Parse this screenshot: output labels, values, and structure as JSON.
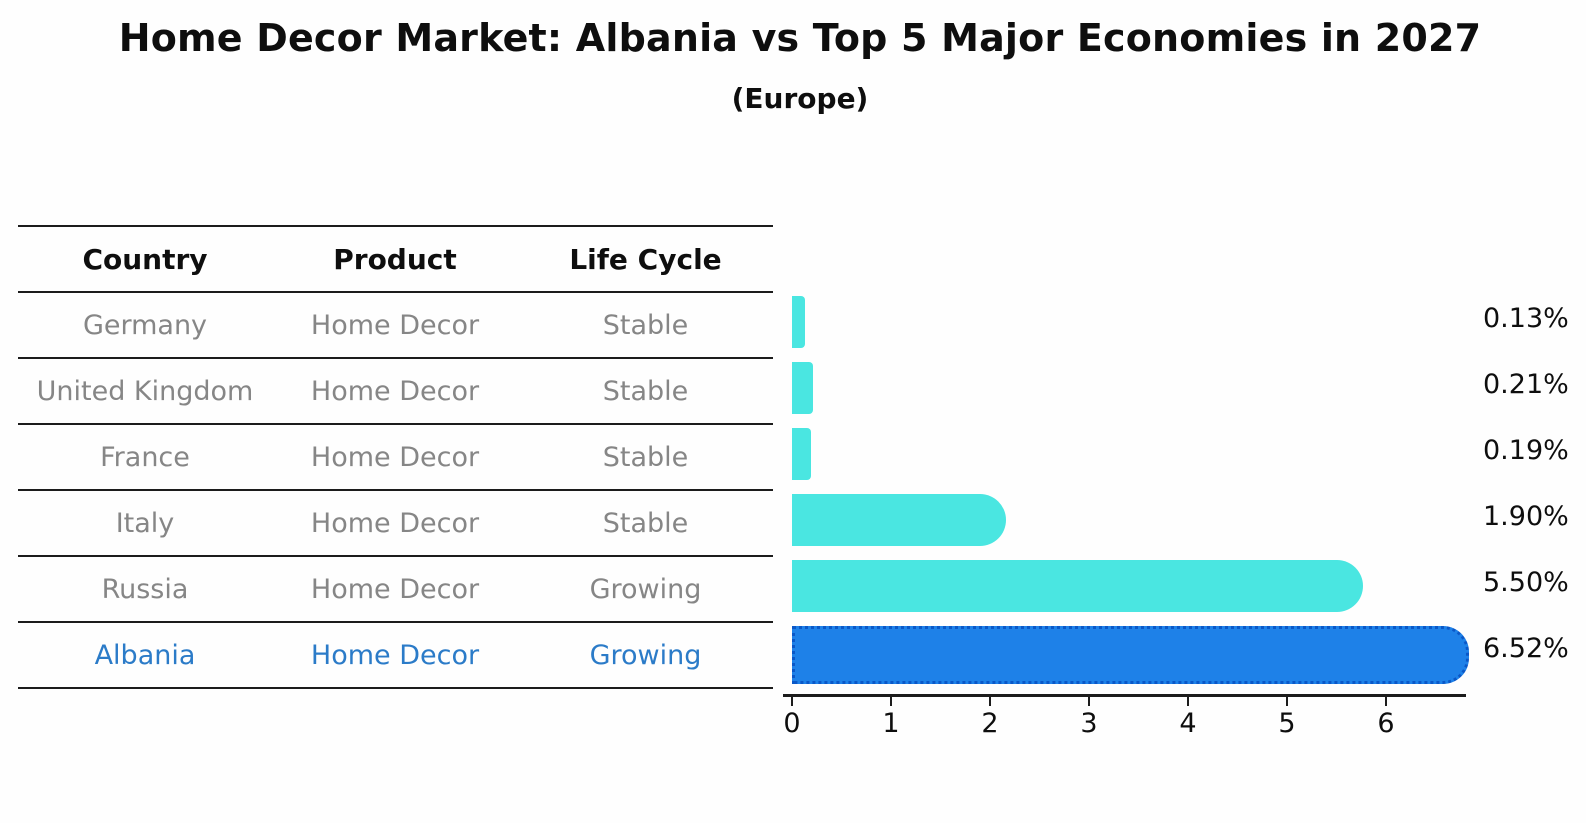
{
  "title": "Home Decor Market: Albania vs Top 5 Major Economies in 2027",
  "subtitle": "(Europe)",
  "table": {
    "headers": [
      "Country",
      "Product",
      "Life Cycle"
    ],
    "rows": [
      {
        "country": "Germany",
        "product": "Home Decor",
        "life_cycle": "Stable",
        "highlighted": false
      },
      {
        "country": "United Kingdom",
        "product": "Home Decor",
        "life_cycle": "Stable",
        "highlighted": false
      },
      {
        "country": "France",
        "product": "Home Decor",
        "life_cycle": "Stable",
        "highlighted": false
      },
      {
        "country": "Italy",
        "product": "Home Decor",
        "life_cycle": "Stable",
        "highlighted": false
      },
      {
        "country": "Russia",
        "product": "Home Decor",
        "life_cycle": "Growing",
        "highlighted": false
      },
      {
        "country": "Albania",
        "product": "Home Decor",
        "life_cycle": "Growing",
        "highlighted": true
      }
    ]
  },
  "chart_data": {
    "type": "bar",
    "orientation": "horizontal",
    "title": "Home Decor Market: Albania vs Top 5 Major Economies in 2027",
    "subtitle": "(Europe)",
    "categories": [
      "Germany",
      "United Kingdom",
      "France",
      "Italy",
      "Russia",
      "Albania"
    ],
    "values": [
      0.13,
      0.21,
      0.19,
      1.9,
      5.5,
      6.52
    ],
    "value_labels": [
      "0.13%",
      "0.21%",
      "0.19%",
      "1.90%",
      "5.50%",
      "6.52%"
    ],
    "highlight_category": "Albania",
    "x_ticks": [
      "0",
      "1",
      "2",
      "3",
      "4",
      "5",
      "6"
    ],
    "xlim": [
      0,
      6.8
    ],
    "grid": false,
    "legend": false,
    "colors": {
      "bar": "#4ae6e1",
      "highlight_bar": "#1e81e8",
      "highlight_border": "#0a58c8",
      "highlight_text": "#2b7bc8",
      "muted_text": "#868686",
      "text": "#0e0e0e"
    }
  }
}
